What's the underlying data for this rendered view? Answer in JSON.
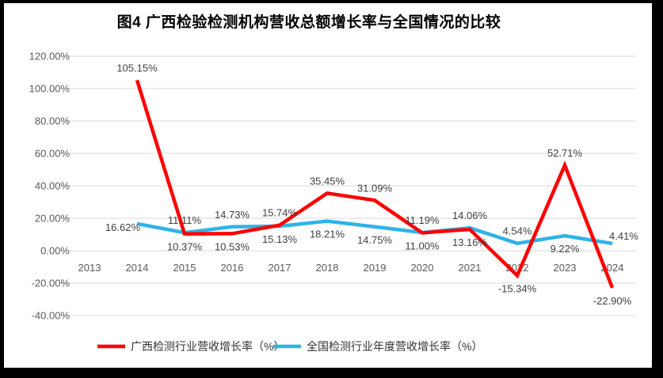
{
  "title": "图4 广西检验检测机构营收总额增长率与全国情况的比较",
  "colors": {
    "background": "#FFFFFF",
    "border": "#000000",
    "grid": "#D9D9D9",
    "axis_text": "#595959",
    "data_label_text": "#404040",
    "series_guangxi": "#FF0000",
    "series_national": "#2FB3E8"
  },
  "chart_data": {
    "type": "line",
    "title": "图4 广西检验检测机构营收总额增长率与全国情况的比较",
    "categories": [
      "2013",
      "2014",
      "2015",
      "2016",
      "2017",
      "2018",
      "2019",
      "2020",
      "2021",
      "2022",
      "2023",
      "2024"
    ],
    "y_axis": {
      "ticks": [
        "120.00%",
        "100.00%",
        "80.00%",
        "60.00%",
        "40.00%",
        "20.00%",
        "0.00%",
        "-20.00%",
        "-40.00%"
      ],
      "max": 120,
      "min": -40,
      "step": 20,
      "unit": "percent"
    },
    "grid": true,
    "legend_position": "bottom",
    "series": [
      {
        "name": "广西检测行业营收增长率（%）",
        "color": "#FF0000",
        "values": [
          null,
          105.15,
          10.37,
          10.53,
          15.74,
          35.45,
          31.09,
          11.0,
          13.16,
          -15.34,
          52.71,
          -22.9
        ],
        "labels": [
          "",
          "105.15%",
          "10.37%",
          "10.53%",
          "15.74%",
          "35.45%",
          "31.09%",
          "11.00%",
          "13.16%",
          "-15.34%",
          "52.71%",
          "-22.90%"
        ],
        "label_sides": [
          "",
          "above",
          "below",
          "below",
          "above",
          "above",
          "above",
          "below",
          "below",
          "below",
          "above",
          "below"
        ]
      },
      {
        "name": "全国检测行业年度营收增长率（%）",
        "color": "#2FB3E8",
        "values": [
          null,
          16.62,
          11.11,
          14.73,
          15.13,
          18.21,
          14.75,
          11.19,
          14.06,
          4.54,
          9.22,
          4.41
        ],
        "labels": [
          "",
          "16.62%",
          "11.11%",
          "14.73%",
          "15.13%",
          "18.21%",
          "14.75%",
          "11.19%",
          "14.06%",
          "4.54%",
          "9.22%",
          "4.41%"
        ],
        "label_sides": [
          "",
          "left",
          "above",
          "above",
          "below",
          "below",
          "below",
          "above",
          "above",
          "above",
          "below",
          "right"
        ]
      }
    ]
  }
}
